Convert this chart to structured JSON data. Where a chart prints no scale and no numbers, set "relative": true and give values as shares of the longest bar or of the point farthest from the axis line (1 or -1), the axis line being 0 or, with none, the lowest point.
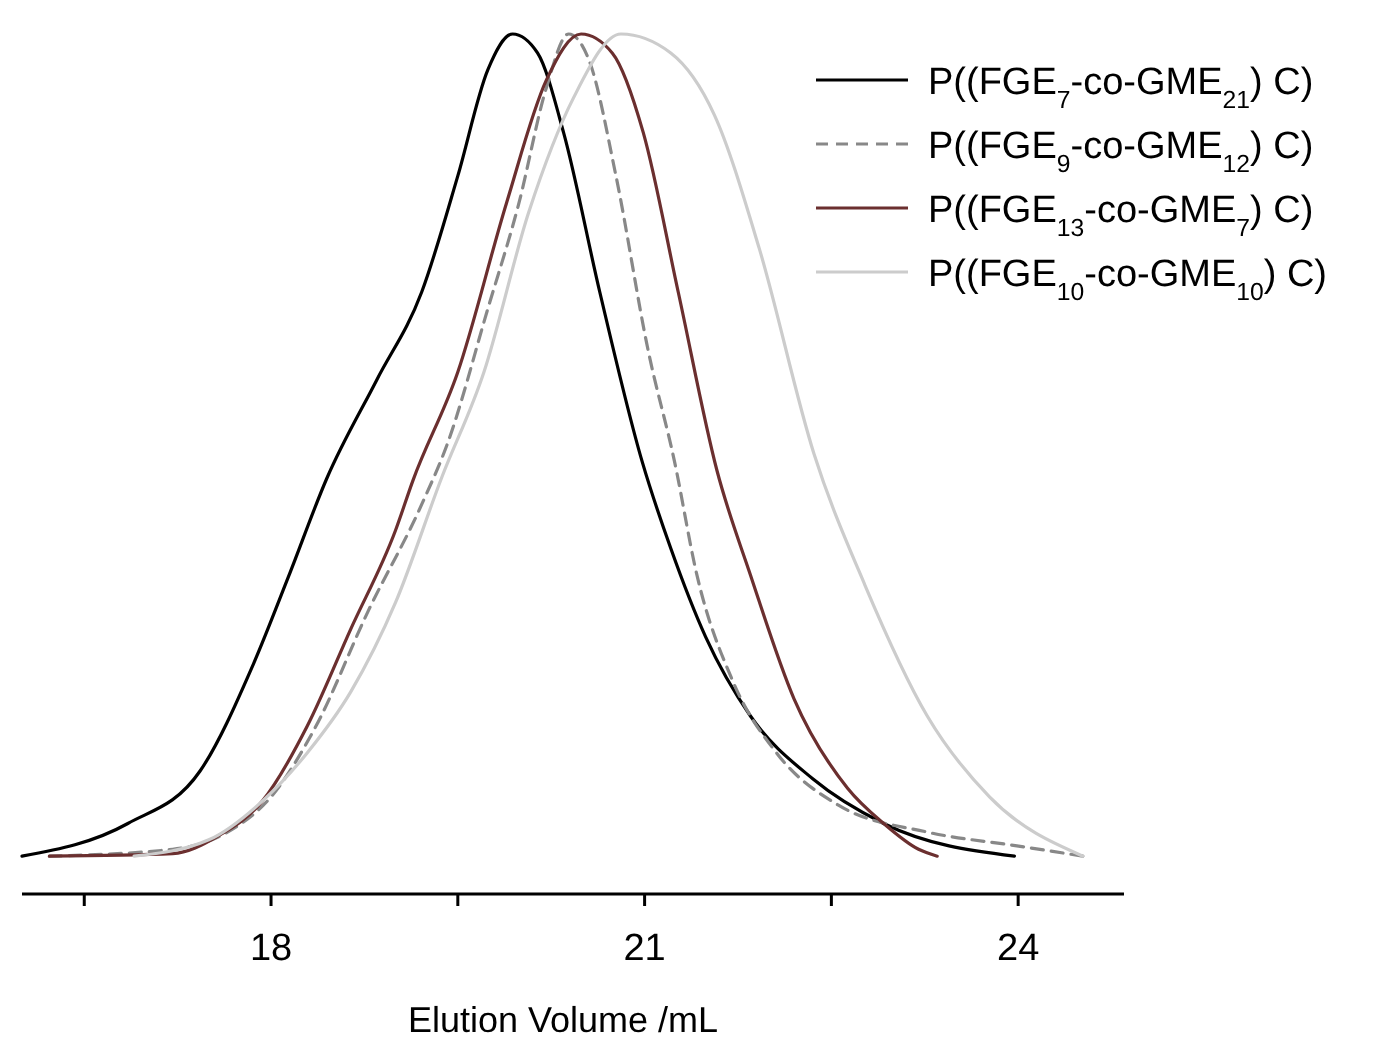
{
  "chart_data": {
    "type": "line",
    "relative": true,
    "xlabel": "Elution Volume /mL",
    "xlim": [
      16,
      24.85
    ],
    "xticks": [
      {
        "value": 16.5,
        "label": null
      },
      18,
      {
        "value": 19.5,
        "label": null
      },
      21,
      {
        "value": 22.5,
        "label": null
      },
      24
    ],
    "legend": "top right",
    "grid": false,
    "marker": "none",
    "series": [
      {
        "name": "P((FGE$_{7}$-co-GME$_{21}$) C)",
        "color": "#000000",
        "line_style": "solid",
        "x": [
          16.0,
          16.85,
          17.43,
          17.86,
          18.14,
          18.45,
          18.85,
          19.21,
          19.5,
          19.74,
          19.94,
          20.14,
          20.35,
          20.64,
          20.98,
          21.21,
          21.49,
          21.85,
          22.35,
          22.92,
          23.97
        ],
        "values": [
          0.044,
          0.082,
          0.143,
          0.268,
          0.369,
          0.484,
          0.598,
          0.7,
          0.835,
          0.958,
          1,
          0.978,
          0.885,
          0.7,
          0.503,
          0.402,
          0.299,
          0.207,
          0.134,
          0.082,
          0.044
        ]
      },
      {
        "name": "P((FGE$_{9}$-co-GME$_{12}$) C)",
        "color": "#888888",
        "line_style": "dashed",
        "x": [
          16.22,
          17.21,
          17.65,
          18.0,
          18.36,
          18.78,
          19.21,
          19.42,
          19.74,
          19.99,
          20.21,
          20.39,
          20.56,
          20.77,
          21.03,
          21.24,
          21.42,
          21.71,
          22.06,
          22.56,
          23.27,
          23.99,
          24.52
        ],
        "values": [
          0.044,
          0.052,
          0.072,
          0.113,
          0.195,
          0.329,
          0.453,
          0.525,
          0.68,
          0.803,
          0.937,
          1,
          0.967,
          0.835,
          0.631,
          0.503,
          0.371,
          0.247,
          0.164,
          0.103,
          0.072,
          0.056,
          0.044
        ]
      },
      {
        "name": "P((FGE$_{13}$-co-GME$_{7}$) C)",
        "color": "#6b2f2f",
        "line_style": "solid",
        "x": [
          16.22,
          17.21,
          17.57,
          17.93,
          18.29,
          18.64,
          19.0,
          19.14,
          19.5,
          19.89,
          20.21,
          20.49,
          20.74,
          20.99,
          21.27,
          21.58,
          21.85,
          22.2,
          22.63,
          22.92,
          23.2,
          23.35
        ],
        "values": [
          0.044,
          0.047,
          0.067,
          0.108,
          0.195,
          0.308,
          0.423,
          0.481,
          0.607,
          0.803,
          0.946,
          1,
          0.978,
          0.885,
          0.7,
          0.493,
          0.371,
          0.227,
          0.123,
          0.082,
          0.052,
          0.044
        ]
      },
      {
        "name": "P((FGE$_{10}$-co-GME$_{10}$) C)",
        "color": "#cccccc",
        "line_style": "solid",
        "x": [
          16.9,
          17.5,
          17.93,
          18.29,
          18.64,
          19.0,
          19.37,
          19.71,
          20.07,
          20.43,
          20.81,
          21.21,
          21.56,
          21.92,
          22.36,
          22.77,
          23.27,
          23.77,
          24.52
        ],
        "values": [
          0.044,
          0.063,
          0.108,
          0.164,
          0.235,
          0.339,
          0.484,
          0.607,
          0.793,
          0.926,
          1,
          0.978,
          0.906,
          0.751,
          0.512,
          0.359,
          0.207,
          0.113,
          0.044
        ]
      }
    ]
  }
}
